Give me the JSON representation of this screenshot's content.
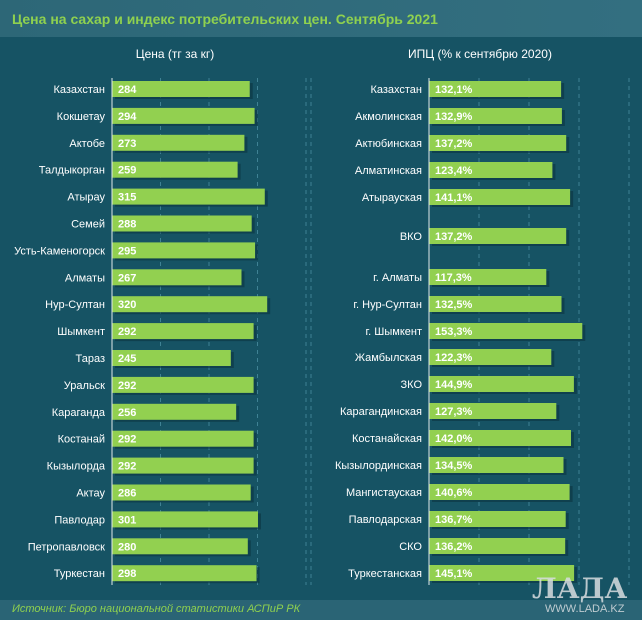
{
  "title": "Цена на сахар и индекс потребительских цен. Сентябрь 2021",
  "source": "Источник: Бюро национальной статистики АСПиР РК",
  "watermark": "ЛАДА WWW.LADA.KZ EnergyProm",
  "colors": {
    "bar": "#92d050",
    "background": "#165364",
    "title": "#8fd14f"
  },
  "chart_data": [
    {
      "type": "bar",
      "orientation": "horizontal",
      "title": "Цена (тг за кг)",
      "xlim": [
        0,
        400
      ],
      "grid": true,
      "categories": [
        "Казахстан",
        "Кокшетау",
        "Актобе",
        "Талдыкорган",
        "Атырау",
        "Семей",
        "Усть-Каменогорск",
        "Алматы",
        "Нур-Султан",
        "Шымкент",
        "Тараз",
        "Уральск",
        "Караганда",
        "Костанай",
        "Кызылорда",
        "Актау",
        "Павлодар",
        "Петропавловск",
        "Туркестан"
      ],
      "values": [
        284,
        294,
        273,
        259,
        315,
        288,
        295,
        267,
        320,
        292,
        245,
        292,
        256,
        292,
        292,
        286,
        301,
        280,
        298
      ],
      "labels": [
        "284",
        "294",
        "273",
        "259",
        "315",
        "288",
        "295",
        "267",
        "320",
        "292",
        "245",
        "292",
        "256",
        "292",
        "292",
        "286",
        "301",
        "280",
        "298"
      ]
    },
    {
      "type": "bar",
      "orientation": "horizontal",
      "title": "ИПЦ (% к сентябрю 2020)",
      "xlim": [
        0,
        200
      ],
      "grid": true,
      "categories": [
        "Казахстан",
        "Акмолинская",
        "Актюбинская",
        "Алматинская",
        "Атырауская",
        "ВКО",
        "г. Алматы",
        "г. Нур-Султан",
        "г. Шымкент",
        "Жамбылская",
        "ЗКО",
        "Карагандинская",
        "Костанайская",
        "Кызылординская",
        "Мангистауская",
        "Павлодарская",
        "СКО",
        "Туркестанская"
      ],
      "values": [
        132.1,
        132.9,
        137.2,
        123.4,
        141.1,
        137.2,
        117.3,
        132.5,
        153.3,
        122.3,
        144.9,
        127.3,
        142.0,
        134.5,
        140.6,
        136.7,
        136.2,
        145.1
      ],
      "labels": [
        "132,1%",
        "132,9%",
        "137,2%",
        "123,4%",
        "141,1%",
        "137,2%",
        "117,3%",
        "132,5%",
        "153,3%",
        "122,3%",
        "144,9%",
        "127,3%",
        "142,0%",
        "134,5%",
        "140,6%",
        "136,7%",
        "136,2%",
        "145,1%"
      ]
    }
  ]
}
